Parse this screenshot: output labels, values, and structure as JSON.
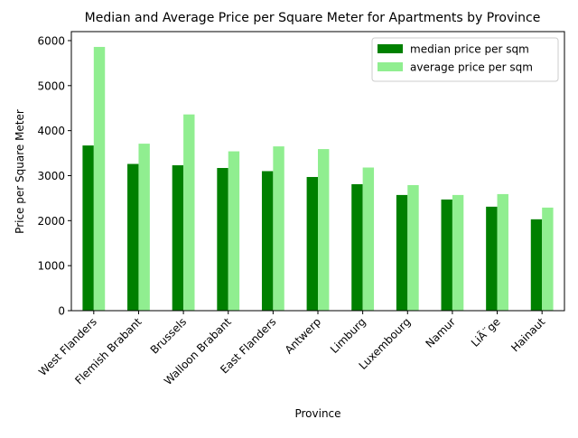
{
  "chart_data": {
    "type": "bar",
    "title": "Median and Average Price per Square Meter for Apartments by Province",
    "xlabel": "Province",
    "ylabel": "Price per Square Meter",
    "categories": [
      "West Flanders",
      "Flemish Brabant",
      "Brussels",
      "Walloon Brabant",
      "East Flanders",
      "Antwerp",
      "Limburg",
      "Luxembourg",
      "Namur",
      "LiÃ¨ge",
      "Hainaut"
    ],
    "series": [
      {
        "name": "median price per sqm",
        "color": "#008000",
        "values": [
          3670,
          3260,
          3230,
          3170,
          3100,
          2970,
          2810,
          2570,
          2470,
          2310,
          2030
        ]
      },
      {
        "name": "average price per sqm",
        "color": "#90ee90",
        "values": [
          5860,
          3710,
          4360,
          3540,
          3650,
          3590,
          3180,
          2790,
          2570,
          2590,
          2290
        ]
      }
    ],
    "ylim": [
      0,
      6200
    ],
    "yticks": [
      "0",
      "1000",
      "2000",
      "3000",
      "4000",
      "5000",
      "6000"
    ],
    "grid": false,
    "legend_position": "upper right"
  }
}
